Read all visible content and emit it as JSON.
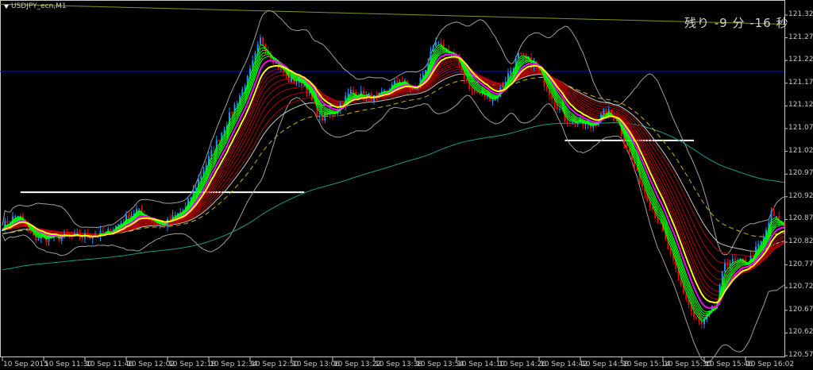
{
  "window": {
    "title": "USDJPY_ecn,M1",
    "title_icon": "dropdown-triangle-icon"
  },
  "countdown": "残り -9 分 -16 秒",
  "chart_data": {
    "type": "candlestick",
    "symbol": "USDJPY_ecn",
    "timeframe": "M1",
    "ylim": [
      120.572,
      121.322
    ],
    "y_ticks": [
      "121.322",
      "121.272",
      "121.222",
      "121.172",
      "121.122",
      "121.072",
      "121.022",
      "120.972",
      "120.922",
      "120.872",
      "120.822",
      "120.772",
      "120.722",
      "120.672",
      "120.622",
      "120.572"
    ],
    "x_ticks": [
      "10 Sep 2015",
      "10 Sep 11:30",
      "10 Sep 11:46",
      "10 Sep 12:02",
      "10 Sep 12:18",
      "10 Sep 12:34",
      "10 Sep 12:50",
      "10 Sep 13:06",
      "10 Sep 13:22",
      "10 Sep 13:38",
      "10 Sep 13:54",
      "10 Sep 14:10",
      "10 Sep 14:26",
      "10 Sep 14:42",
      "10 Sep 14:58",
      "10 Sep 15:14",
      "10 Sep 15:30",
      "10 Sep 15:46",
      "10 Sep 16:02"
    ],
    "start_time": "11:14",
    "bar_minutes": 1,
    "approx_close_path_minutes_price": [
      [
        0,
        120.857
      ],
      [
        6,
        120.883
      ],
      [
        12,
        120.831
      ],
      [
        18,
        120.831
      ],
      [
        31,
        120.834
      ],
      [
        40,
        120.84
      ],
      [
        52,
        120.892
      ],
      [
        62,
        120.857
      ],
      [
        71,
        120.897
      ],
      [
        77,
        120.971
      ],
      [
        86,
        121.076
      ],
      [
        95,
        121.18
      ],
      [
        100,
        121.268
      ],
      [
        105,
        121.224
      ],
      [
        111,
        121.18
      ],
      [
        117,
        121.172
      ],
      [
        123,
        121.093
      ],
      [
        129,
        121.11
      ],
      [
        135,
        121.154
      ],
      [
        145,
        121.137
      ],
      [
        154,
        121.18
      ],
      [
        160,
        121.154
      ],
      [
        168,
        121.259
      ],
      [
        175,
        121.233
      ],
      [
        182,
        121.154
      ],
      [
        191,
        121.137
      ],
      [
        200,
        121.233
      ],
      [
        206,
        121.215
      ],
      [
        212,
        121.154
      ],
      [
        218,
        121.093
      ],
      [
        228,
        121.076
      ],
      [
        234,
        121.11
      ],
      [
        238,
        121.093
      ],
      [
        246,
        120.971
      ],
      [
        255,
        120.857
      ],
      [
        263,
        120.726
      ],
      [
        268,
        120.656
      ],
      [
        271,
        120.639
      ],
      [
        277,
        120.691
      ],
      [
        280,
        120.778
      ],
      [
        289,
        120.778
      ],
      [
        295,
        120.831
      ],
      [
        298,
        120.883
      ],
      [
        303,
        120.857
      ]
    ],
    "horizontal_lines": [
      {
        "price": 121.198,
        "color": "#0000ff",
        "span": "full"
      },
      {
        "price": 120.932,
        "color": "#ffffff",
        "from": "11:21",
        "to": "13:11"
      },
      {
        "price": 121.046,
        "color": "#ffffff",
        "from": "14:52",
        "to": "15:42"
      }
    ],
    "trendline": {
      "from_price": 121.346,
      "to_price": 121.302,
      "color": "#7a9a1a"
    },
    "colors": {
      "bull": "#1e90ff",
      "bear": "#ff0000",
      "bollinger": "#a0a0a0",
      "long_ma": "#1a9a8a",
      "ma_yellow": "#ffff00",
      "ma_magenta": "#ff00ff",
      "ma_green": "#00ff00",
      "ma_red": "#b00000",
      "ma_white": "#c8c8c8",
      "ma_dashed": "#c8b400",
      "grid_frame": "#c8c8c8"
    }
  }
}
